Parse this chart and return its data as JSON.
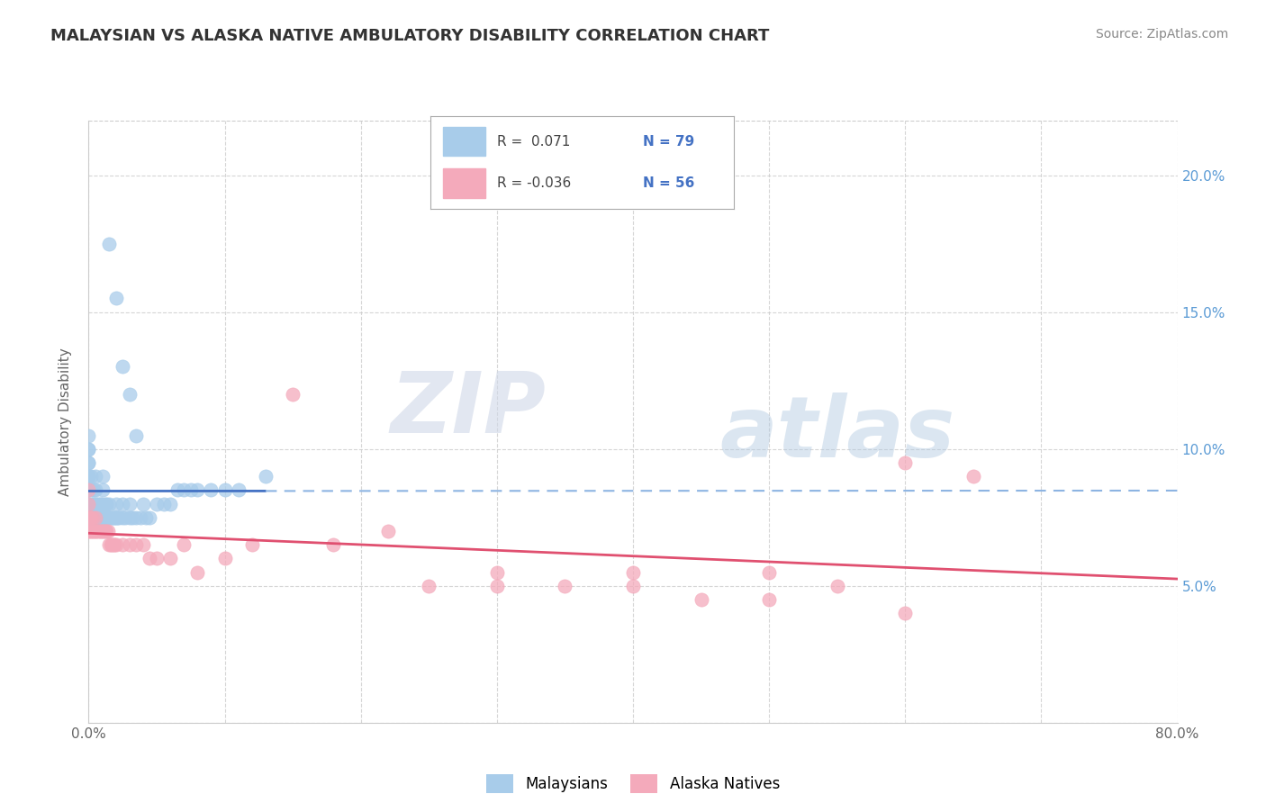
{
  "title": "MALAYSIAN VS ALASKA NATIVE AMBULATORY DISABILITY CORRELATION CHART",
  "source": "Source: ZipAtlas.com",
  "ylabel": "Ambulatory Disability",
  "xmin": 0.0,
  "xmax": 0.8,
  "ymin": 0.0,
  "ymax": 0.22,
  "xticks": [
    0.0,
    0.1,
    0.2,
    0.3,
    0.4,
    0.5,
    0.6,
    0.7,
    0.8
  ],
  "xtick_labels": [
    "0.0%",
    "",
    "",
    "",
    "",
    "",
    "",
    "",
    "80.0%"
  ],
  "yticks": [
    0.0,
    0.05,
    0.1,
    0.15,
    0.2
  ],
  "ytick_labels_left": [
    "",
    "",
    "",
    "",
    ""
  ],
  "ytick_labels_right": [
    "",
    "5.0%",
    "10.0%",
    "15.0%",
    "20.0%"
  ],
  "color_malaysian": "#A8CCEA",
  "color_alaska": "#F4AABB",
  "color_line_malaysian": "#4472C4",
  "color_line_alaska": "#E05070",
  "color_line_dashed": "#8DB4E2",
  "background_color": "#FFFFFF",
  "grid_color": "#CCCCCC",
  "watermark_zip": "ZIP",
  "watermark_atlas": "atlas",
  "legend_r1": "R =  0.071",
  "legend_n1": "N = 79",
  "legend_r2": "R = -0.036",
  "legend_n2": "N = 56",
  "malaysian_x": [
    0.0,
    0.0,
    0.0,
    0.0,
    0.0,
    0.0,
    0.0,
    0.0,
    0.0,
    0.0,
    0.0,
    0.0,
    0.002,
    0.002,
    0.002,
    0.002,
    0.003,
    0.003,
    0.004,
    0.004,
    0.004,
    0.005,
    0.005,
    0.005,
    0.005,
    0.006,
    0.006,
    0.007,
    0.007,
    0.008,
    0.008,
    0.009,
    0.009,
    0.01,
    0.01,
    0.01,
    0.01,
    0.012,
    0.012,
    0.013,
    0.013,
    0.014,
    0.015,
    0.015,
    0.016,
    0.017,
    0.018,
    0.019,
    0.02,
    0.02,
    0.021,
    0.022,
    0.025,
    0.025,
    0.027,
    0.03,
    0.03,
    0.032,
    0.035,
    0.038,
    0.04,
    0.042,
    0.045,
    0.05,
    0.055,
    0.06,
    0.065,
    0.07,
    0.075,
    0.08,
    0.09,
    0.1,
    0.11,
    0.13,
    0.015,
    0.02,
    0.025,
    0.03,
    0.035
  ],
  "malaysian_y": [
    0.075,
    0.08,
    0.08,
    0.085,
    0.09,
    0.09,
    0.09,
    0.095,
    0.095,
    0.1,
    0.1,
    0.105,
    0.075,
    0.08,
    0.085,
    0.09,
    0.075,
    0.08,
    0.075,
    0.08,
    0.085,
    0.075,
    0.08,
    0.085,
    0.09,
    0.075,
    0.08,
    0.075,
    0.08,
    0.075,
    0.08,
    0.075,
    0.08,
    0.075,
    0.08,
    0.085,
    0.09,
    0.075,
    0.08,
    0.075,
    0.08,
    0.075,
    0.075,
    0.08,
    0.075,
    0.075,
    0.075,
    0.075,
    0.075,
    0.08,
    0.075,
    0.075,
    0.075,
    0.08,
    0.075,
    0.075,
    0.08,
    0.075,
    0.075,
    0.075,
    0.08,
    0.075,
    0.075,
    0.08,
    0.08,
    0.08,
    0.085,
    0.085,
    0.085,
    0.085,
    0.085,
    0.085,
    0.085,
    0.09,
    0.175,
    0.155,
    0.13,
    0.12,
    0.105
  ],
  "alaska_x": [
    0.0,
    0.0,
    0.0,
    0.0,
    0.0,
    0.001,
    0.001,
    0.002,
    0.002,
    0.003,
    0.003,
    0.004,
    0.005,
    0.005,
    0.006,
    0.007,
    0.008,
    0.009,
    0.01,
    0.011,
    0.012,
    0.013,
    0.014,
    0.015,
    0.016,
    0.017,
    0.018,
    0.019,
    0.02,
    0.025,
    0.03,
    0.035,
    0.04,
    0.045,
    0.05,
    0.06,
    0.07,
    0.08,
    0.1,
    0.12,
    0.15,
    0.18,
    0.22,
    0.25,
    0.3,
    0.35,
    0.4,
    0.45,
    0.5,
    0.55,
    0.6,
    0.65,
    0.6,
    0.5,
    0.4,
    0.3
  ],
  "alaska_y": [
    0.07,
    0.075,
    0.075,
    0.08,
    0.085,
    0.07,
    0.075,
    0.07,
    0.075,
    0.07,
    0.075,
    0.07,
    0.07,
    0.075,
    0.07,
    0.07,
    0.07,
    0.07,
    0.07,
    0.07,
    0.07,
    0.07,
    0.07,
    0.065,
    0.065,
    0.065,
    0.065,
    0.065,
    0.065,
    0.065,
    0.065,
    0.065,
    0.065,
    0.06,
    0.06,
    0.06,
    0.065,
    0.055,
    0.06,
    0.065,
    0.12,
    0.065,
    0.07,
    0.05,
    0.05,
    0.05,
    0.05,
    0.045,
    0.045,
    0.05,
    0.04,
    0.09,
    0.095,
    0.055,
    0.055,
    0.055
  ]
}
